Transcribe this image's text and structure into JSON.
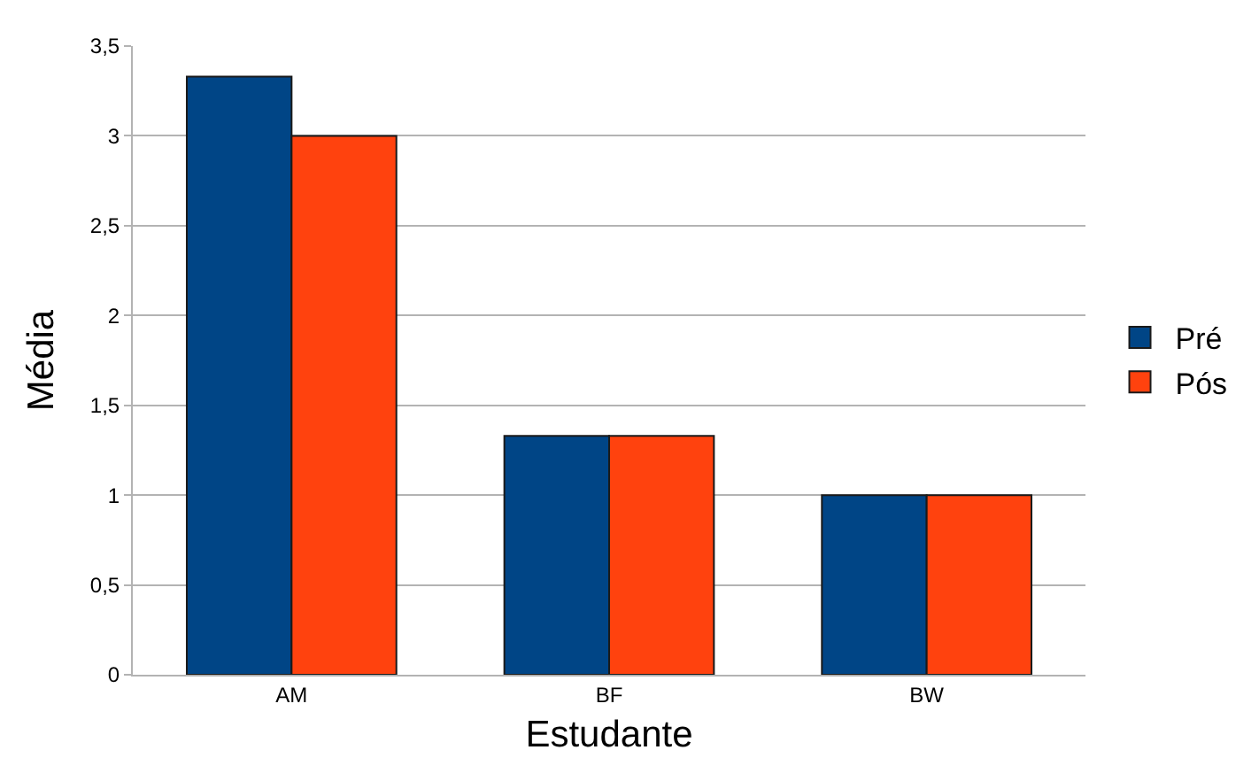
{
  "chart_data": {
    "type": "bar",
    "xlabel": "Estudante",
    "ylabel": "Média",
    "categories": [
      "AM",
      "BF",
      "BW"
    ],
    "series": [
      {
        "name": "Pré",
        "color": "#004586",
        "values": [
          3.33,
          1.33,
          1
        ]
      },
      {
        "name": "Pós",
        "color": "#ff420e",
        "values": [
          3,
          1.33,
          1
        ]
      }
    ],
    "ylim": [
      0,
      3.5
    ],
    "yticks": [
      0,
      {
        "value": 0.5,
        "label": "0,5"
      },
      1,
      {
        "value": 1.5,
        "label": "1,5"
      },
      2,
      {
        "value": 2.5,
        "label": "2,5"
      },
      3,
      {
        "value": 3.5,
        "label": "3,5"
      }
    ],
    "grid": "y",
    "legend": "right"
  }
}
